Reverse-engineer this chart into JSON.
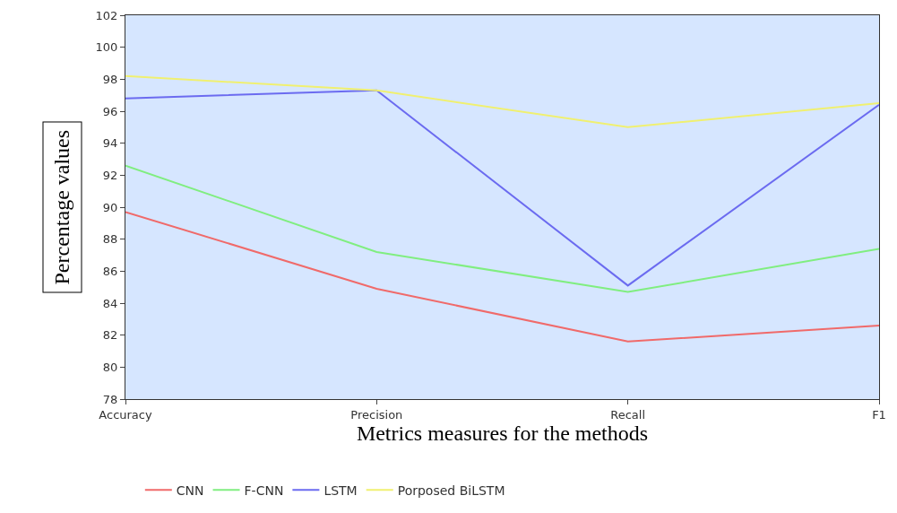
{
  "chart_data": {
    "type": "line",
    "xlabel": "Metrics measures for the methods",
    "ylabel": "Percentage values",
    "categories": [
      "Accuracy",
      "Precision",
      "Recall",
      "F1"
    ],
    "series": [
      {
        "name": "CNN",
        "color": "#f06a6a",
        "values": [
          89.7,
          84.9,
          81.6,
          82.6
        ]
      },
      {
        "name": "F-CNN",
        "color": "#80ee80",
        "values": [
          92.6,
          87.2,
          84.7,
          87.4
        ]
      },
      {
        "name": "LSTM",
        "color": "#6b6bf0",
        "values": [
          96.8,
          97.3,
          85.1,
          96.4
        ]
      },
      {
        "name": "Porposed BiLSTM",
        "color": "#f0f070",
        "values": [
          98.2,
          97.3,
          95.0,
          96.5
        ]
      }
    ],
    "ylim": [
      78,
      102
    ],
    "yticks": [
      78,
      80,
      82,
      84,
      86,
      88,
      90,
      92,
      94,
      96,
      98,
      100,
      102
    ],
    "grid": false,
    "legend": "bottom",
    "marker": "none",
    "line_style": "solid"
  }
}
